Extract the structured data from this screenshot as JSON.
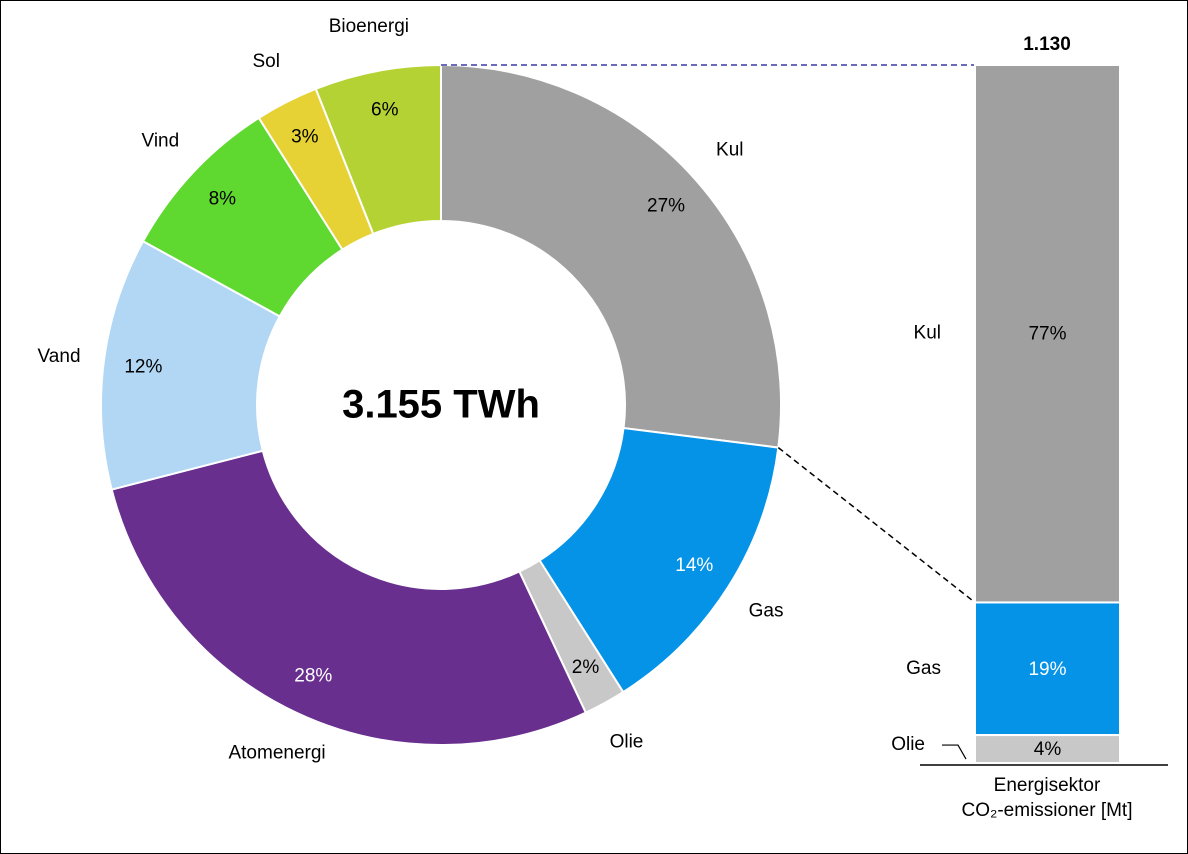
{
  "chart_data": [
    {
      "type": "donut",
      "center_label": "3.155 TWh",
      "categories": [
        "Kul",
        "Gas",
        "Olie",
        "Atomenergi",
        "Vand",
        "Vind",
        "Sol",
        "Bioenergi"
      ],
      "values": [
        27,
        14,
        2,
        28,
        12,
        8,
        3,
        6
      ],
      "value_labels": [
        "27%",
        "14%",
        "2%",
        "28%",
        "12%",
        "8%",
        "3%",
        "6%"
      ],
      "colors": [
        "#a0a0a0",
        "#0593e8",
        "#c8c8c8",
        "#682f8e",
        "#b2d7f5",
        "#5fd830",
        "#e6d235",
        "#b5d234"
      ]
    },
    {
      "type": "stacked_bar",
      "total": {
        "value": 1130,
        "label": "1.130"
      },
      "xlabel": [
        "Energisektor",
        "CO₂-emissioner [Mt]"
      ],
      "series": [
        {
          "name": "Kul",
          "color": "#a0a0a0",
          "values": [
            77
          ],
          "value_labels": [
            "77%"
          ]
        },
        {
          "name": "Gas",
          "color": "#0593e8",
          "values": [
            19
          ],
          "value_labels": [
            "19%"
          ]
        },
        {
          "name": "Olie",
          "color": "#c8c8c8",
          "values": [
            4
          ],
          "value_labels": [
            "4%"
          ]
        }
      ]
    }
  ]
}
